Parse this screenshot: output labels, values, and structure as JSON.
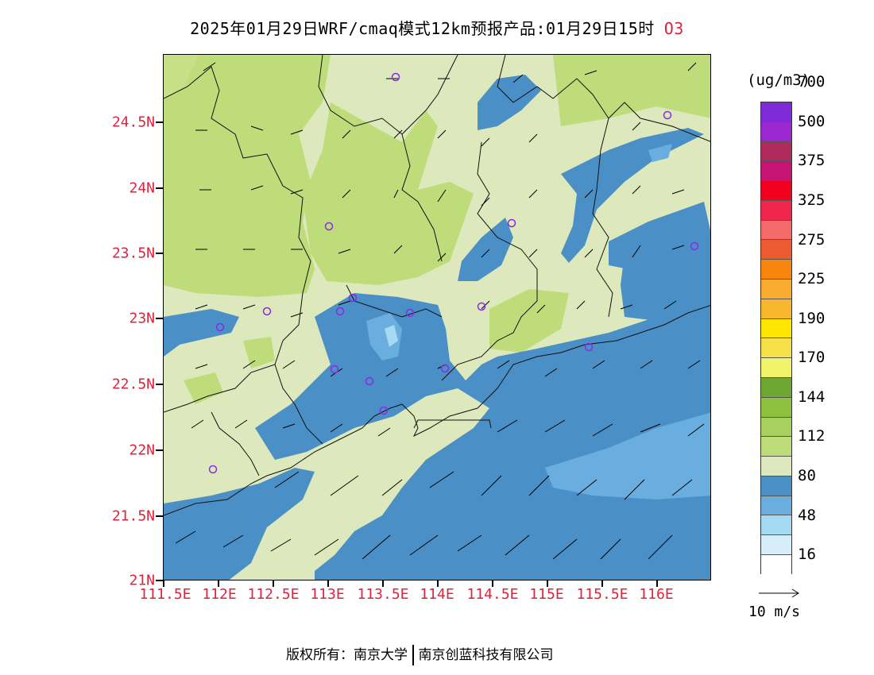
{
  "title": {
    "text": "2025年01月29日WRF/cmaq模式12km预报产品:01月29日15时",
    "species": "O3"
  },
  "map": {
    "lat_labels": [
      "21N",
      "21.5N",
      "22N",
      "22.5N",
      "23N",
      "23.5N",
      "24N",
      "24.5N"
    ],
    "lon_labels": [
      "111.5E",
      "112E",
      "112.5E",
      "113E",
      "113.5E",
      "114E",
      "114.5E",
      "115E",
      "115.5E",
      "116E"
    ],
    "background_color": "#dde8bc",
    "station_color": "#8a2be2"
  },
  "colorbar": {
    "unit": "(ug/m3)",
    "colors": [
      "#ffffff",
      "#d6eefa",
      "#a5daf3",
      "#6aaee0",
      "#4a8fc6",
      "#dde8bc",
      "#bfdc7a",
      "#a7d060",
      "#8ec13f",
      "#6ea733",
      "#f1f36a",
      "#f6e04a",
      "#fde700",
      "#f9b62f",
      "#f8ab2f",
      "#f7860f",
      "#ec5b2f",
      "#f46a6a",
      "#f0264f",
      "#f20020",
      "#c71374",
      "#b02a5c",
      "#9a27cf",
      "#7f2ad9"
    ],
    "labels": [
      "16",
      "48",
      "80",
      "112",
      "144",
      "170",
      "190",
      "225",
      "275",
      "325",
      "375",
      "500",
      "700"
    ]
  },
  "vector_key": {
    "label": "10 m/s"
  },
  "footer": {
    "left": "版权所有：南京大学",
    "right": "南京创蓝科技有限公司"
  }
}
